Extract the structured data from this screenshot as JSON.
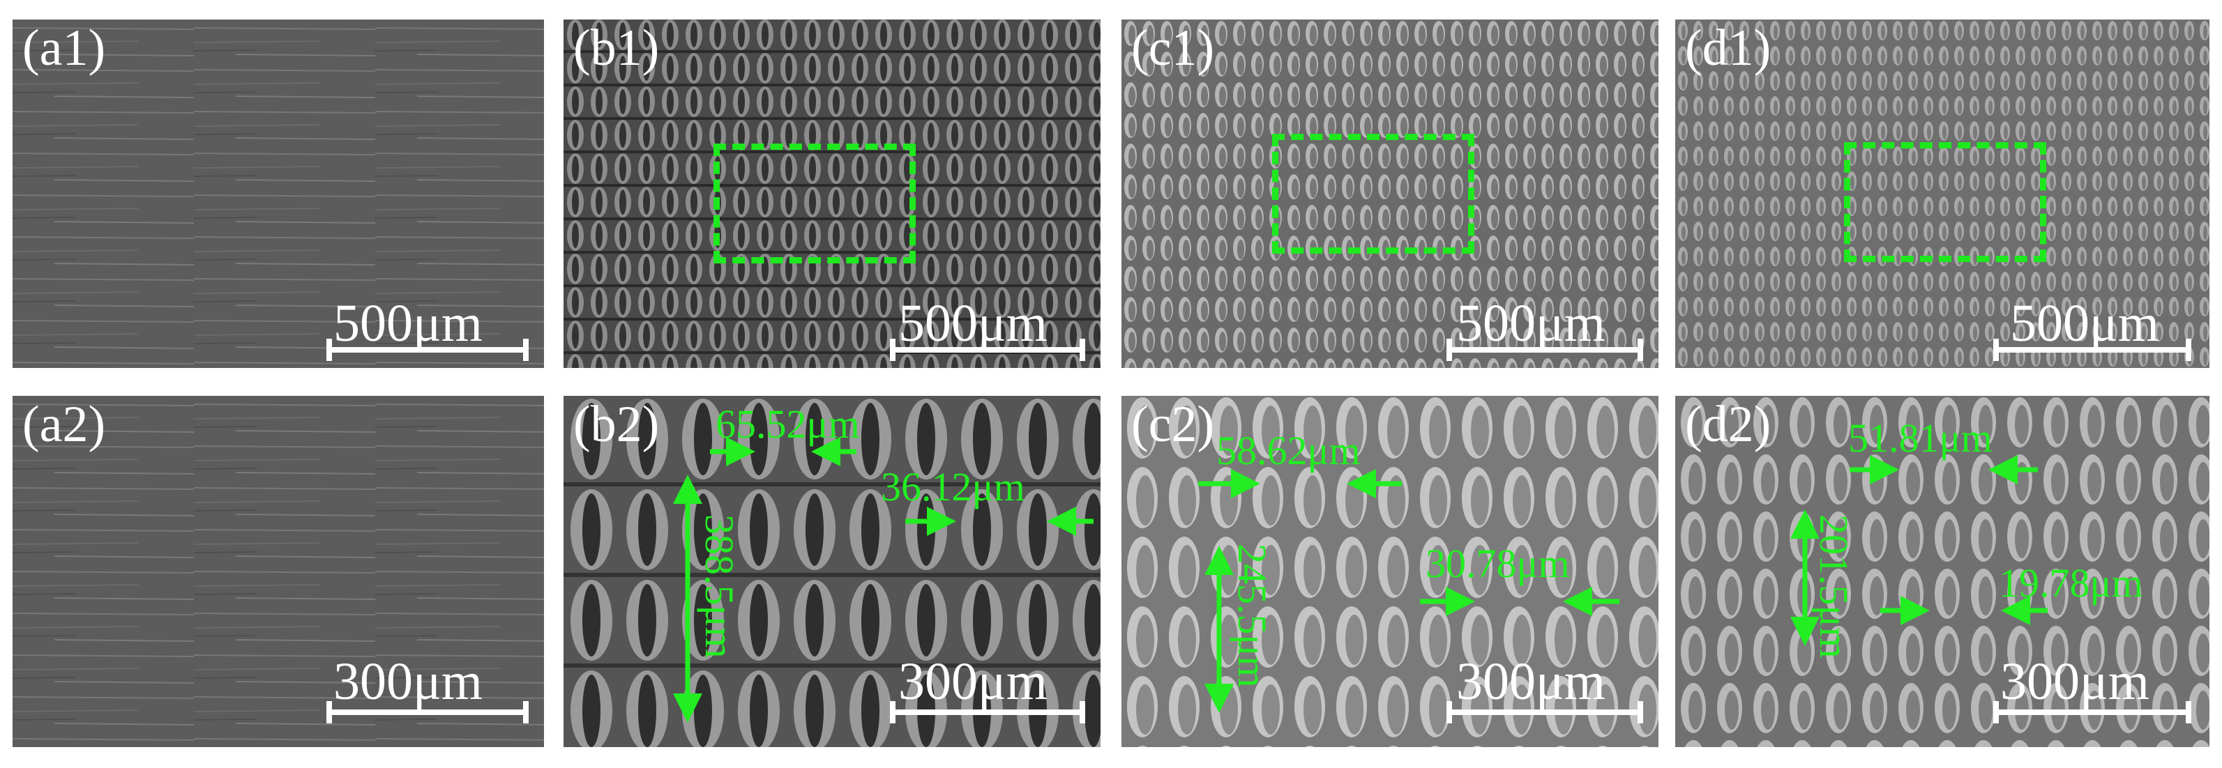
{
  "colors": {
    "annotation": "#22ee22",
    "scale_bar": "#ffffff"
  },
  "panels": {
    "a1": {
      "label": "(a1)",
      "scale": "500μm"
    },
    "b1": {
      "label": "(b1)",
      "scale": "500μm"
    },
    "c1": {
      "label": "(c1)",
      "scale": "500μm"
    },
    "d1": {
      "label": "(d1)",
      "scale": "500μm"
    },
    "a2": {
      "label": "(a2)",
      "scale": "300μm"
    },
    "b2": {
      "label": "(b2)",
      "scale": "300μm",
      "m1": "65.52μm",
      "m2": "36.12μm",
      "m3": "388.5μm"
    },
    "c2": {
      "label": "(c2)",
      "scale": "300μm",
      "m1": "58.62μm",
      "m2": "30.78μm",
      "m3": "245.5μm"
    },
    "d2": {
      "label": "(d2)",
      "scale": "300μm",
      "m1": "51.81μm",
      "m2": "19.78μm",
      "m3": "201.5μm"
    }
  }
}
